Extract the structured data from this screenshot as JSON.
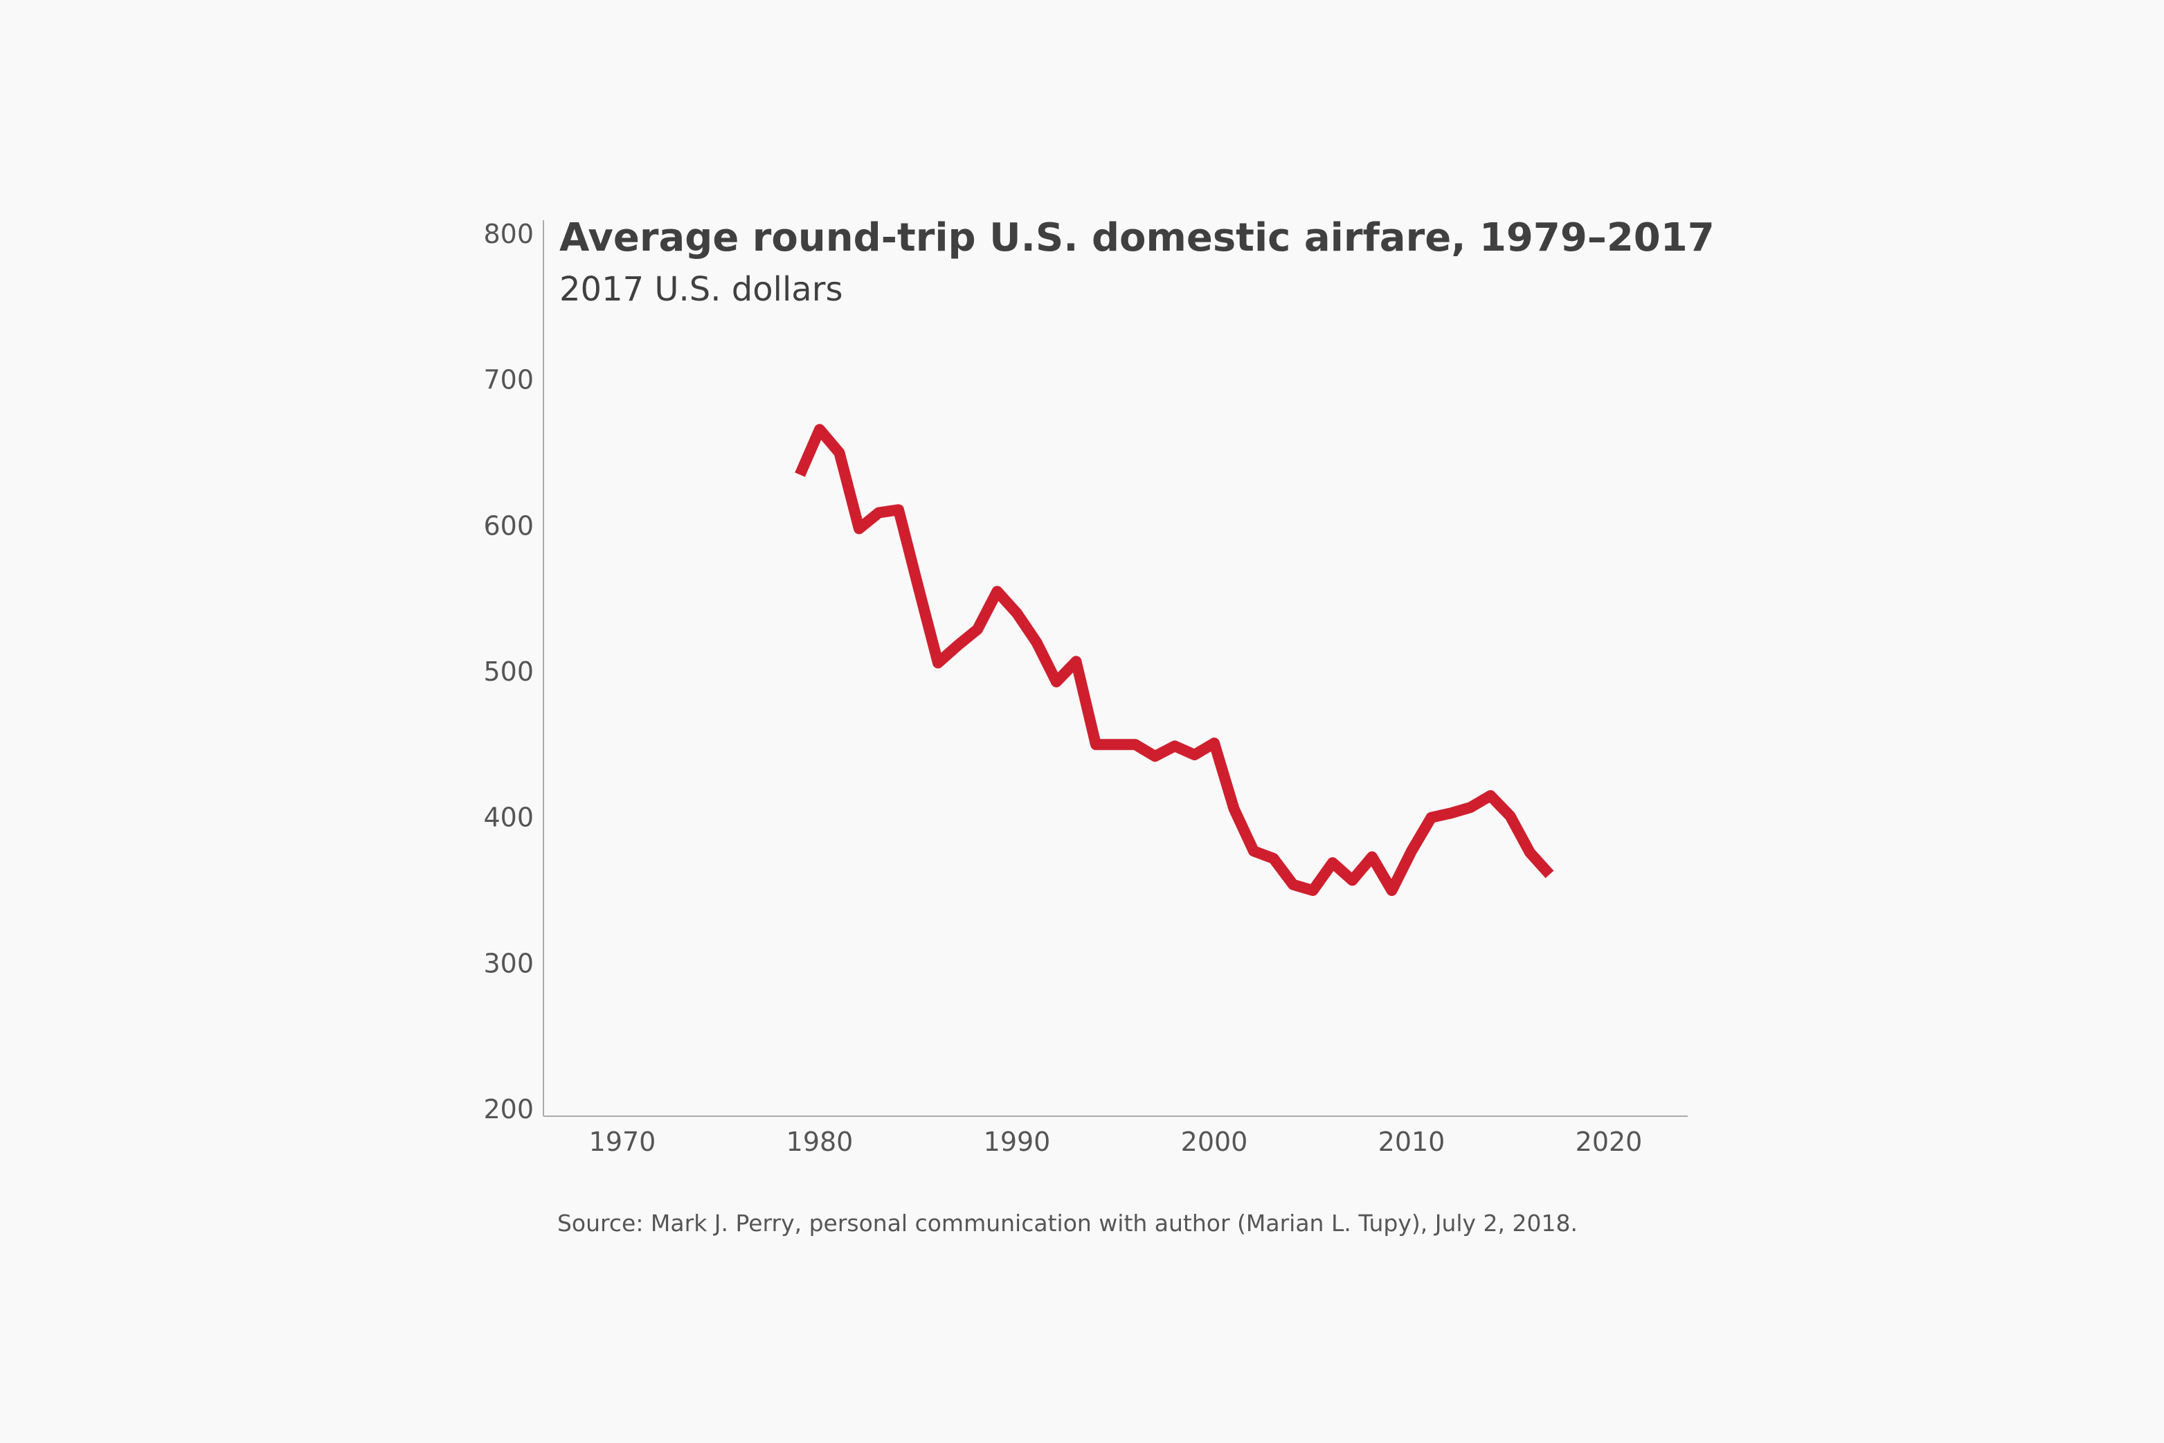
{
  "chart_data": {
    "type": "line",
    "title": "Average round-trip U.S. domestic airfare, 1979–2017",
    "subtitle": "2017 U.S. dollars",
    "source": "Source: Mark J. Perry, personal communication with author (Marian L. Tupy), July 2, 2018.",
    "xlabel": "",
    "ylabel": "",
    "xlim": [
      1966,
      2024
    ],
    "ylim": [
      200,
      800
    ],
    "x_ticks": [
      1970,
      1980,
      1990,
      2000,
      2010,
      2020
    ],
    "y_ticks": [
      200,
      300,
      400,
      500,
      600,
      700,
      800
    ],
    "x_tick_labels": [
      "1970",
      "1980",
      "1990",
      "2000",
      "2010",
      "2020"
    ],
    "y_tick_labels": [
      "200",
      "300",
      "400",
      "500",
      "600",
      "700",
      "800"
    ],
    "grid": false,
    "line_color": "#cf1f2e",
    "x": [
      1979,
      1980,
      1981,
      1982,
      1983,
      1984,
      1985,
      1986,
      1987,
      1988,
      1989,
      1990,
      1991,
      1992,
      1993,
      1994,
      1995,
      1996,
      1997,
      1998,
      1999,
      2000,
      2001,
      2002,
      2003,
      2004,
      2005,
      2006,
      2007,
      2008,
      2009,
      2010,
      2011,
      2012,
      2013,
      2014,
      2015,
      2016,
      2017
    ],
    "series": [
      {
        "values": [
          635,
          666,
          650,
          598,
          609,
          611,
          558,
          506,
          518,
          529,
          555,
          540,
          520,
          493,
          507,
          450,
          450,
          450,
          442,
          449,
          443,
          451,
          406,
          377,
          372,
          354,
          350,
          369,
          357,
          373,
          350,
          377,
          400,
          403,
          407,
          415,
          401,
          376,
          361
        ]
      }
    ]
  }
}
